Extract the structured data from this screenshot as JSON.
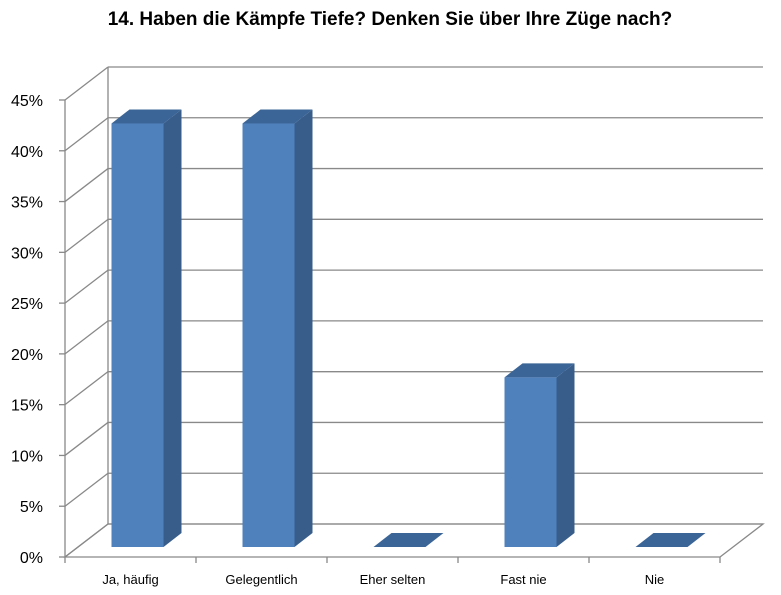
{
  "chart_data": {
    "type": "bar",
    "title": "14. Haben die Kämpfe Tiefe? Denken Sie über Ihre Züge nach?",
    "categories": [
      "Ja, häufig",
      "Gelegentlich",
      "Eher selten",
      "Fast nie",
      "Nie"
    ],
    "values": [
      41.7,
      41.7,
      0,
      16.7,
      0
    ],
    "ylim": [
      0,
      45
    ],
    "yticks": [
      "0%",
      "5%",
      "10%",
      "15%",
      "20%",
      "25%",
      "30%",
      "35%",
      "40%",
      "45%"
    ],
    "style": "3d-column",
    "grid": true,
    "colors": {
      "front": "#4f81bd",
      "side": "#385d8a",
      "top": "#3b6597"
    }
  }
}
